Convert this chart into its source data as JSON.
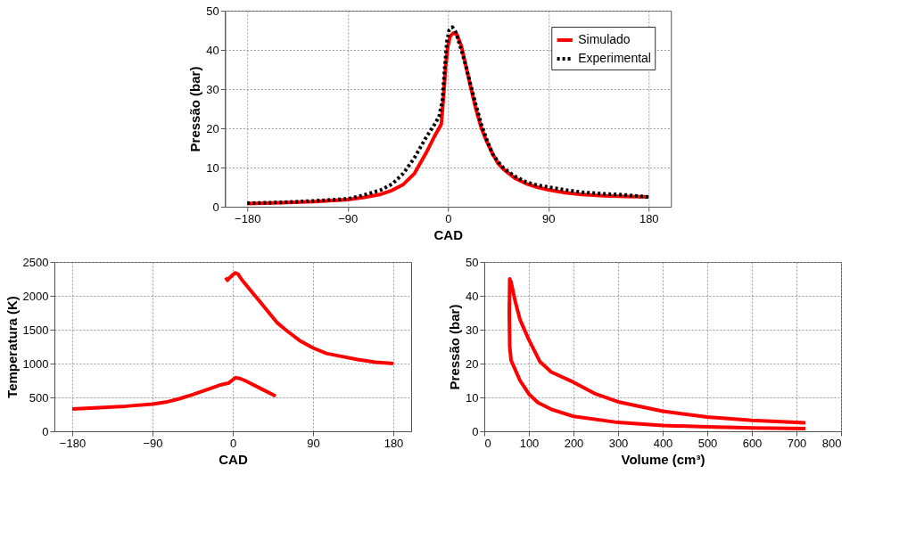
{
  "chart_data": [
    {
      "type": "line",
      "xlabel": "CAD",
      "ylabel": "Pressão (bar)",
      "xlim": [
        -200,
        200
      ],
      "xticks": [
        -180,
        -90,
        0,
        90,
        180
      ],
      "ylim": [
        0,
        50
      ],
      "yticks": [
        0,
        10,
        20,
        30,
        40,
        50
      ],
      "grid": true,
      "legend": "top right",
      "series": [
        {
          "name": "Simulado",
          "color": "#ff0000",
          "line_style": "solid",
          "x": [
            -180,
            -150,
            -120,
            -90,
            -75,
            -60,
            -50,
            -40,
            -30,
            -20,
            -12,
            -8,
            -6,
            -4,
            -2,
            0,
            2,
            5,
            8,
            12,
            16,
            20,
            25,
            30,
            35,
            40,
            45,
            50,
            60,
            70,
            80,
            90,
            105,
            120,
            140,
            160,
            180
          ],
          "values": [
            0.8,
            1.0,
            1.3,
            1.8,
            2.4,
            3.2,
            4.2,
            5.7,
            8.5,
            13.5,
            18,
            20,
            21,
            28,
            36,
            41,
            43.5,
            44.3,
            44,
            41,
            36,
            31,
            25,
            20,
            16.5,
            13.5,
            11,
            9.5,
            7.3,
            5.9,
            5,
            4.3,
            3.6,
            3.1,
            2.8,
            2.6,
            2.5
          ]
        },
        {
          "name": "Experimental",
          "color": "#000000",
          "line_style": "dotted",
          "x": [
            -180,
            -150,
            -120,
            -90,
            -75,
            -60,
            -50,
            -40,
            -30,
            -20,
            -12,
            -8,
            -5,
            -3,
            -1,
            1,
            4,
            7,
            12,
            16,
            20,
            25,
            30,
            35,
            40,
            45,
            50,
            60,
            70,
            80,
            90,
            105,
            120,
            140,
            160,
            180
          ],
          "values": [
            0.9,
            1.1,
            1.5,
            2.0,
            3.0,
            4.3,
            5.8,
            8.5,
            12.5,
            17.5,
            21,
            23,
            27,
            35,
            42,
            45,
            45.8,
            44.5,
            40,
            36,
            31.5,
            26,
            21,
            17,
            13.5,
            11.5,
            9.8,
            7.8,
            6.3,
            5.5,
            5,
            4.3,
            3.7,
            3.3,
            3,
            2.5
          ]
        }
      ]
    },
    {
      "type": "line",
      "xlabel": "CAD",
      "ylabel": "Temperatura (K)",
      "xlim": [
        -200,
        200
      ],
      "xticks": [
        -180,
        -90,
        0,
        90,
        180
      ],
      "ylim": [
        0,
        2500
      ],
      "yticks": [
        0,
        500,
        1000,
        1500,
        2000,
        2500
      ],
      "grid": true,
      "series": [
        {
          "color": "#ff0000",
          "x": [
            -180,
            -150,
            -120,
            -90,
            -75,
            -60,
            -45,
            -30,
            -15,
            -5,
            0,
            3,
            8,
            15,
            30,
            48
          ],
          "values": [
            330,
            350,
            370,
            400,
            430,
            480,
            540,
            610,
            680,
            710,
            760,
            790,
            780,
            740,
            640,
            520
          ]
        },
        {
          "color": "#ff0000",
          "x": [
            -8,
            -6,
            -4,
            0,
            3,
            6,
            10,
            20,
            30,
            40,
            50,
            60,
            75,
            90,
            105,
            120,
            140,
            160,
            180
          ],
          "values": [
            2270,
            2230,
            2260,
            2310,
            2340,
            2320,
            2240,
            2080,
            1920,
            1760,
            1600,
            1490,
            1340,
            1230,
            1150,
            1110,
            1060,
            1020,
            1000
          ]
        }
      ]
    },
    {
      "type": "line",
      "xlabel": "Volume (cm³)",
      "ylabel": "Pressão (bar)",
      "xlim": [
        0,
        800
      ],
      "xticks": [
        0,
        100,
        200,
        300,
        400,
        500,
        600,
        700,
        800
      ],
      "ylim": [
        0,
        50
      ],
      "yticks": [
        0,
        10,
        20,
        30,
        40,
        50
      ],
      "grid": true,
      "series": [
        {
          "color": "#ff0000",
          "x": [
            720,
            600,
            500,
            400,
            300,
            200,
            150,
            120,
            100,
            80,
            70,
            60,
            57,
            56,
            57,
            60,
            70,
            80,
            100,
            125,
            150,
            200,
            250,
            300,
            400,
            500,
            600,
            720
          ],
          "values": [
            0.8,
            1.0,
            1.3,
            1.7,
            2.6,
            4.4,
            6.5,
            8.5,
            11,
            15,
            18,
            21,
            25,
            35,
            45,
            44,
            38,
            33,
            27,
            20.5,
            17.5,
            14.5,
            11,
            8.7,
            5.9,
            4.2,
            3.2,
            2.5
          ]
        }
      ]
    }
  ]
}
